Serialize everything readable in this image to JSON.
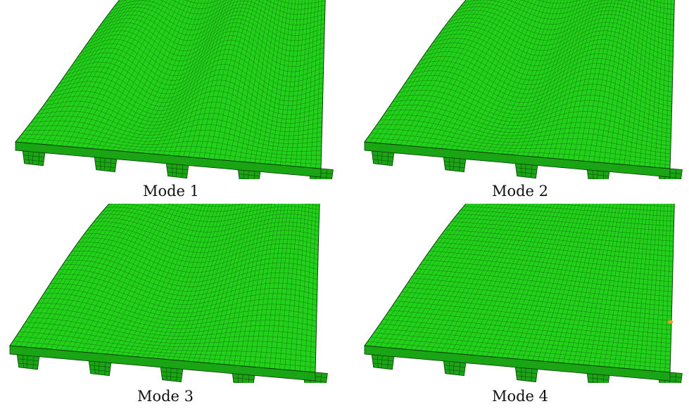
{
  "figure": {
    "panels": [
      {
        "id": "mode-1",
        "caption": "Mode 1",
        "waves": 2.0,
        "amplitude": 0.16,
        "bias": 0.0
      },
      {
        "id": "mode-2",
        "caption": "Mode 2",
        "waves": 1.6,
        "amplitude": 0.14,
        "bias": 0.3
      },
      {
        "id": "mode-3",
        "caption": "Mode 3",
        "waves": 1.2,
        "amplitude": 0.11,
        "bias": 0.6
      },
      {
        "id": "mode-4",
        "caption": "Mode 4",
        "waves": 0.4,
        "amplitude": 0.05,
        "bias": 0.9
      }
    ],
    "colors": {
      "mesh_fill": "#22d11a",
      "mesh_shade": "#1aa514",
      "mesh_line": "#0b3d08",
      "marker": "#e0a020"
    }
  }
}
